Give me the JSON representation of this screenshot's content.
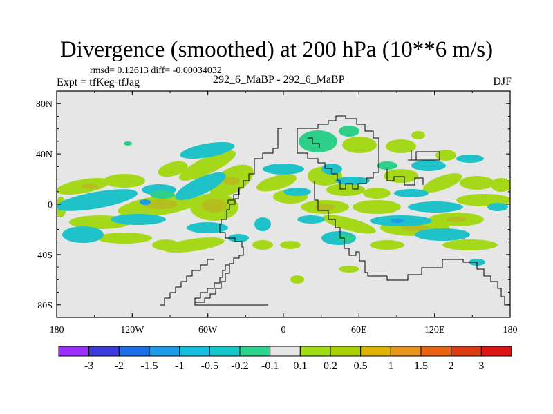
{
  "header": {
    "title": "Divergence (smoothed) at 200 hPa (10**6 m/s)",
    "stats": "rmsd= 0.12613 diff= -0.00034032",
    "experiment": "Expt = tfKeg-tfJag",
    "comparison": "292_6_MaBP - 292_6_MaBP",
    "season": "DJF"
  },
  "axes": {
    "lat_labels": [
      "80N",
      "40N",
      "0",
      "40S",
      "80S"
    ],
    "lat_values": [
      80,
      40,
      0,
      -40,
      -80
    ],
    "lon_labels": [
      "180",
      "120W",
      "60W",
      "0",
      "60E",
      "120E",
      "180"
    ],
    "lon_values": [
      -180,
      -120,
      -60,
      0,
      60,
      120,
      180
    ],
    "lat_range": [
      -90,
      90
    ],
    "lon_range": [
      -180,
      180
    ]
  },
  "colorbar": {
    "labels": [
      "-3",
      "-2",
      "-1.5",
      "-1",
      "-0.5",
      "-0.2",
      "-0.1",
      "0.1",
      "0.2",
      "0.5",
      "1",
      "1.5",
      "2",
      "3"
    ],
    "colors": [
      "#9b30ff",
      "#3c3cdc",
      "#1e6ee6",
      "#1e9be6",
      "#14bedc",
      "#14c8c8",
      "#2dd28c",
      "#e6e6e6",
      "#a0dc14",
      "#aad200",
      "#dcb400",
      "#e6961e",
      "#e66414",
      "#dc3c14",
      "#dc1414"
    ]
  },
  "map": {
    "background": "#e6e6e6",
    "coast_color": "#000000"
  }
}
